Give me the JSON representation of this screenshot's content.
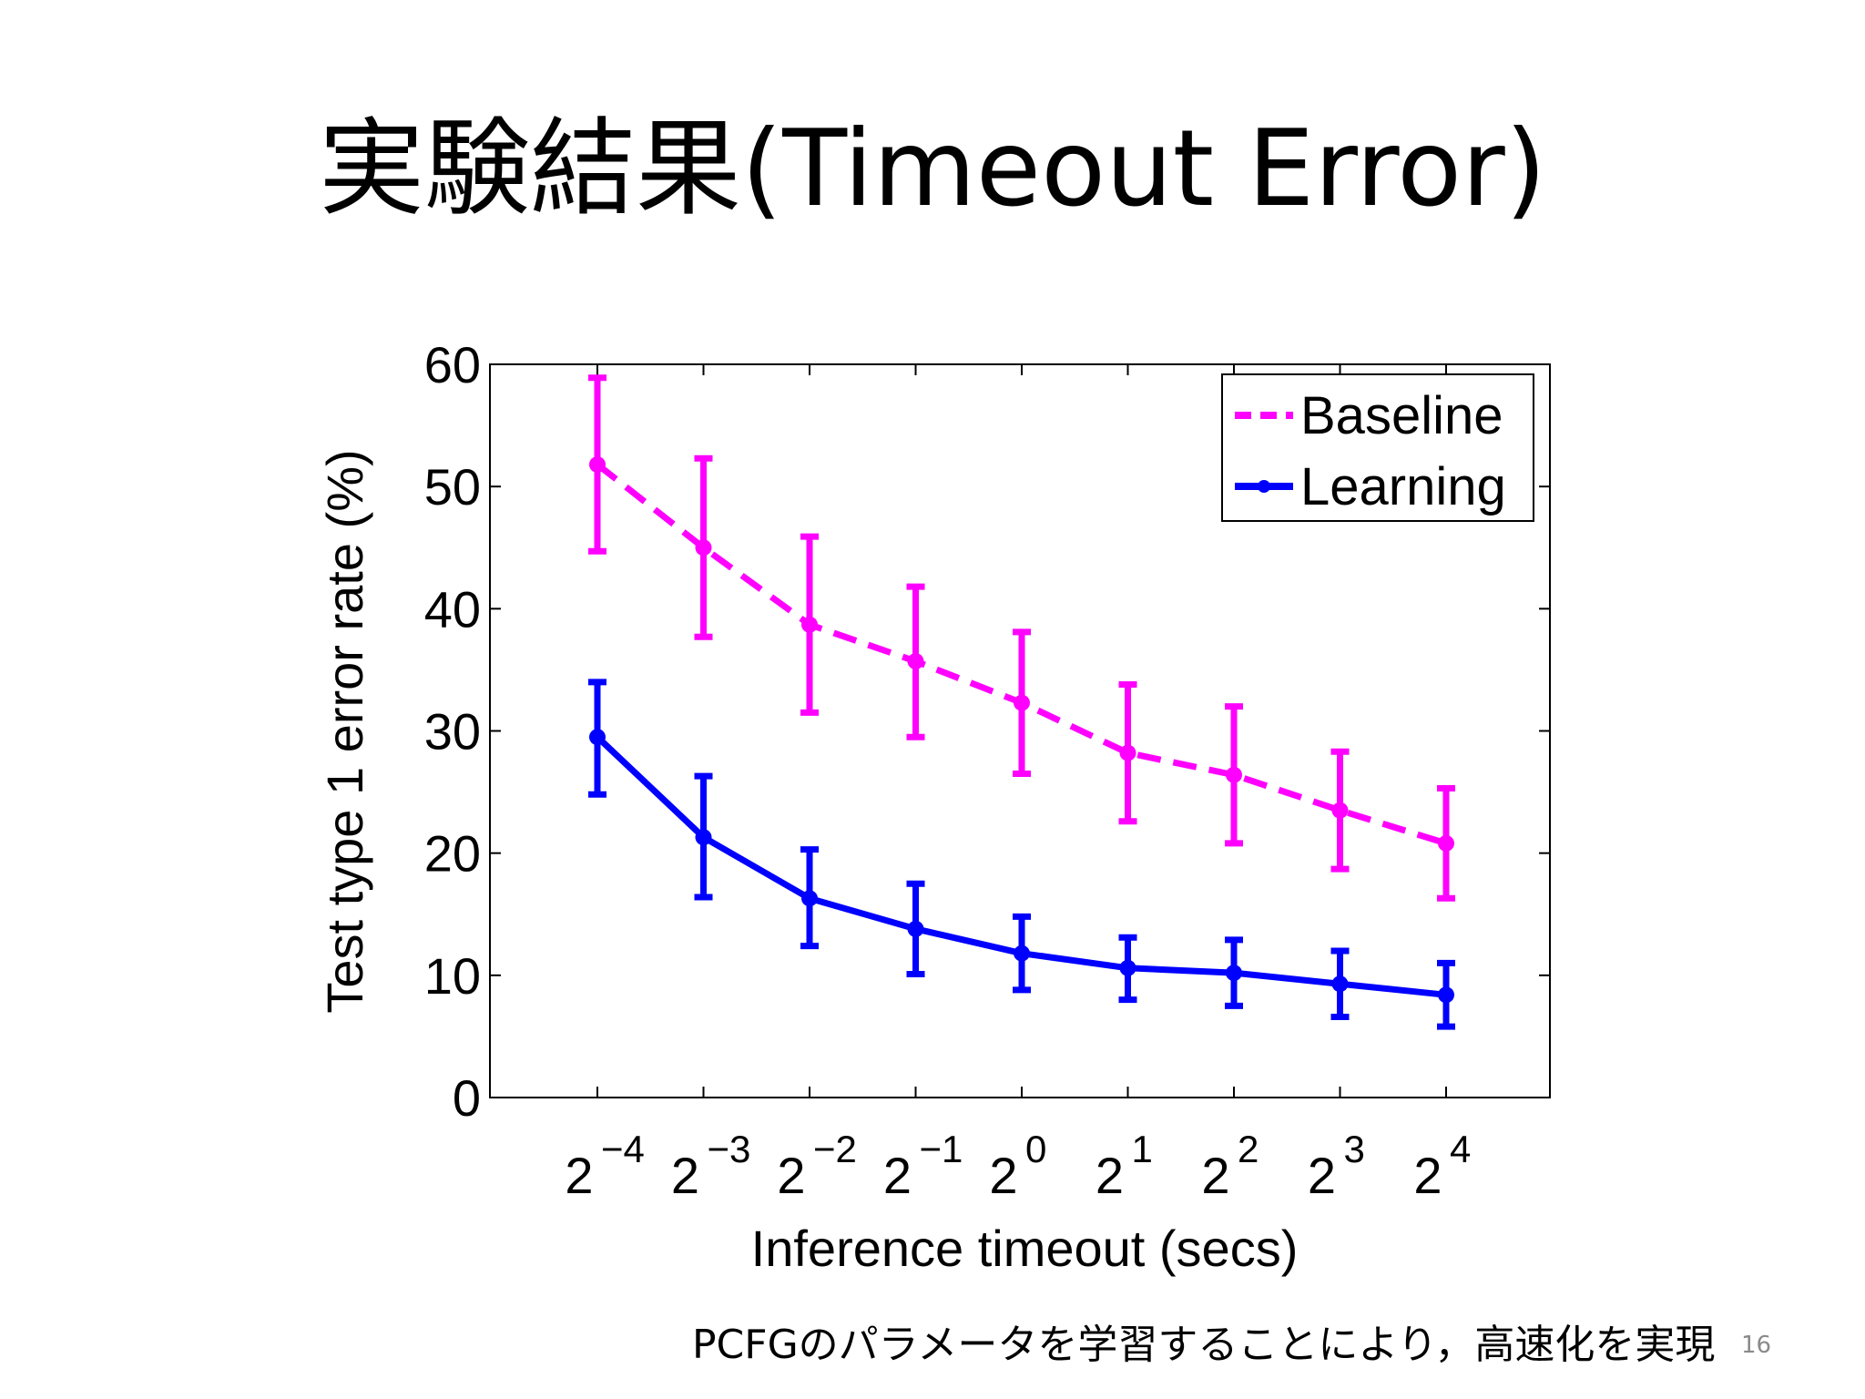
{
  "slide": {
    "title": "実験結果(Timeout Error)",
    "caption": "PCFGのパラメータを学習することにより，高速化を実現",
    "page_number": "16"
  },
  "chart_data": {
    "type": "line",
    "xlabel": "Inference timeout (secs)",
    "ylabel": "Test type 1 error rate (%)",
    "ylim": [
      0,
      60
    ],
    "yticks": [
      "0",
      "10",
      "20",
      "30",
      "40",
      "50",
      "60"
    ],
    "x_base": "2",
    "x_exponents": [
      "−4",
      "−3",
      "−2",
      "−1",
      "0",
      "1",
      "2",
      "3",
      "4"
    ],
    "x": [
      0.0625,
      0.125,
      0.25,
      0.5,
      1,
      2,
      4,
      8,
      16
    ],
    "x_scale": "log2",
    "grid": false,
    "legend_position": "top-right",
    "series": [
      {
        "name": "Baseline",
        "color": "#ff00ff",
        "line_style": "dashed",
        "values": [
          51.8,
          45.0,
          38.7,
          35.7,
          32.3,
          28.2,
          26.4,
          23.5,
          20.8
        ],
        "err_low": [
          44.7,
          37.7,
          31.5,
          29.5,
          26.5,
          22.6,
          20.8,
          18.7,
          16.3
        ],
        "err_high": [
          58.9,
          52.3,
          45.9,
          41.8,
          38.1,
          33.8,
          32.0,
          28.3,
          25.3
        ]
      },
      {
        "name": "Learning",
        "color": "#0000ff",
        "line_style": "solid",
        "values": [
          29.5,
          21.3,
          16.3,
          13.8,
          11.8,
          10.6,
          10.2,
          9.3,
          8.4
        ],
        "err_low": [
          24.8,
          16.4,
          12.4,
          10.1,
          8.8,
          8.0,
          7.5,
          6.6,
          5.8
        ],
        "err_high": [
          34.0,
          26.3,
          20.3,
          17.5,
          14.8,
          13.1,
          12.9,
          12.0,
          11.0
        ]
      }
    ]
  }
}
